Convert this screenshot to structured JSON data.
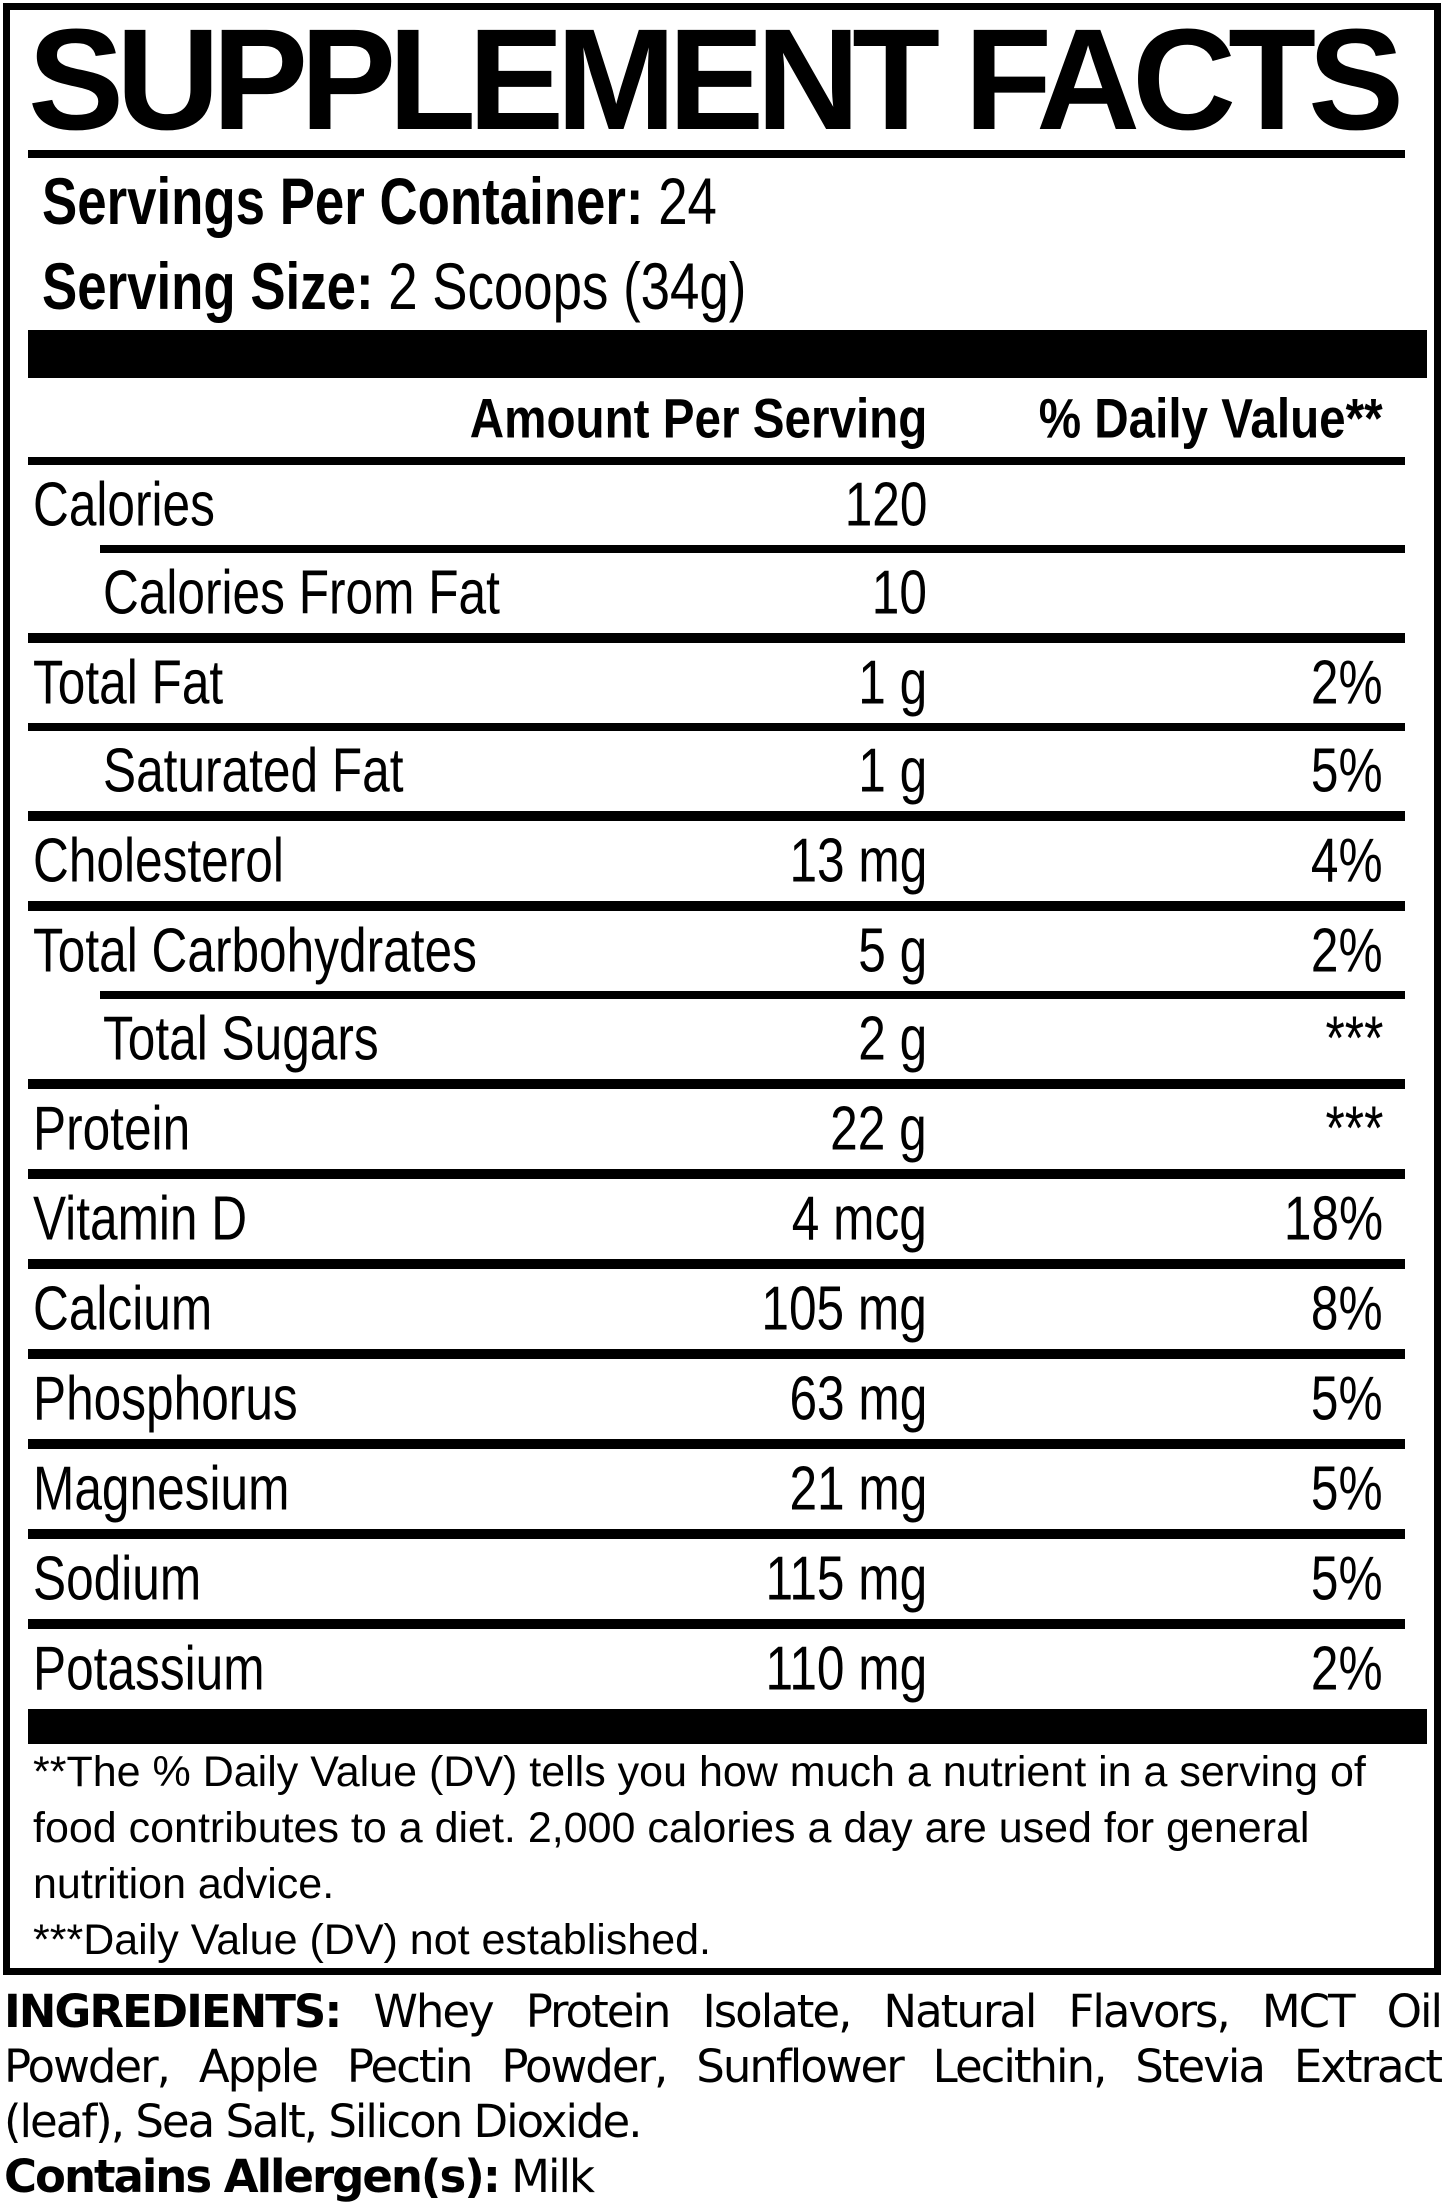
{
  "title": "SUPPLEMENT FACTS",
  "servings": {
    "label": "Servings Per Container:",
    "value": "24"
  },
  "serving_size": {
    "label": "Serving Size:",
    "value": "2 Scoops (34g)"
  },
  "table": {
    "amount_header": "Amount Per Serving",
    "dv_header": "% Daily Value**",
    "rows": [
      {
        "name": "Calories",
        "amount": "120",
        "dv": ""
      },
      {
        "name": "Calories From Fat",
        "amount": "10",
        "dv": ""
      },
      {
        "name": "Total Fat",
        "amount": "1 g",
        "dv": "2%"
      },
      {
        "name": "Saturated Fat",
        "amount": "1 g",
        "dv": "5%"
      },
      {
        "name": "Cholesterol",
        "amount": "13 mg",
        "dv": "4%"
      },
      {
        "name": "Total Carbohydrates",
        "amount": "5 g",
        "dv": "2%"
      },
      {
        "name": "Total Sugars",
        "amount": "2 g",
        "dv": "***"
      },
      {
        "name": "Protein",
        "amount": "22 g",
        "dv": "***"
      },
      {
        "name": "Vitamin D",
        "amount": "4 mcg",
        "dv": "18%"
      },
      {
        "name": "Calcium",
        "amount": "105 mg",
        "dv": "8%"
      },
      {
        "name": "Phosphorus",
        "amount": "63 mg",
        "dv": "5%"
      },
      {
        "name": "Magnesium",
        "amount": "21 mg",
        "dv": "5%"
      },
      {
        "name": "Sodium",
        "amount": "115 mg",
        "dv": "5%"
      },
      {
        "name": "Potassium",
        "amount": "110 mg",
        "dv": "2%"
      }
    ]
  },
  "footnotes": {
    "dv_note": "**The % Daily Value (DV) tells you how much a nutrient in a serving of food contributes to a diet. 2,000 calories a day are used for general nutrition advice.",
    "not_established_note": "***Daily Value (DV) not established."
  },
  "ingredients": {
    "label": "INGREDIENTS:",
    "list": "Whey Protein Isolate, Natural Flavors, MCT Oil Powder, Apple Pectin Powder, Sunflower Lecithin, Stevia Extract (leaf), Sea Salt, Silicon Dioxide.",
    "allergen_label": "Contains Allergen(s):",
    "allergen_value": "Milk"
  },
  "colors": {
    "ink": "#000000",
    "background": "#ffffff"
  }
}
